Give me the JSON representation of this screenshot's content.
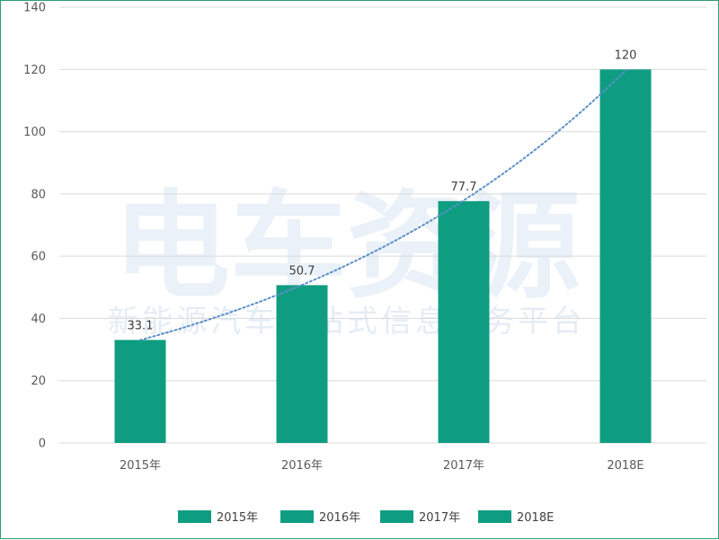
{
  "watermark": {
    "main": "电车资源",
    "sub": "新能源汽车一站式信息服务平台"
  },
  "chart_data": {
    "type": "bar",
    "categories": [
      "2015年",
      "2016年",
      "2017年",
      "2018E"
    ],
    "values": [
      33.1,
      50.7,
      77.7,
      120
    ],
    "ylim": [
      0,
      140
    ],
    "yticks": [
      0,
      20,
      40,
      60,
      80,
      100,
      120,
      140
    ],
    "data_labels": [
      "33.1",
      "50.7",
      "77.7",
      "120"
    ],
    "title": "",
    "xlabel": "",
    "ylabel": "",
    "grid": true,
    "trendline": "dotted",
    "legend": {
      "position": "bottom",
      "entries": [
        "2015年",
        "2016年",
        "2017年",
        "2018E"
      ]
    },
    "colors": {
      "bar": "#0f9d82",
      "trendline": "#5b8fc7",
      "grid": "#d9d9d9"
    }
  }
}
